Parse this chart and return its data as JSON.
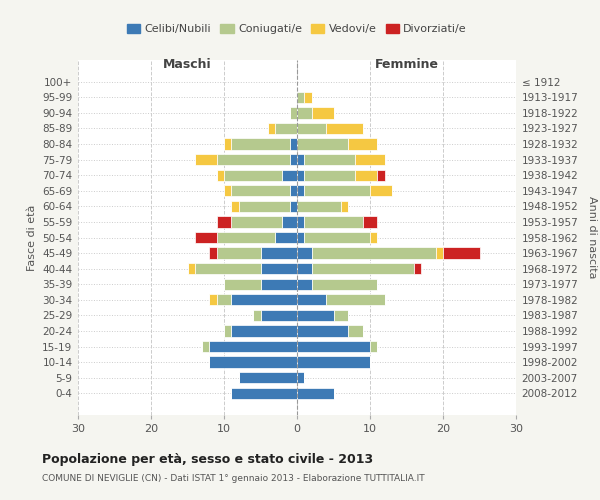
{
  "age_groups": [
    "0-4",
    "5-9",
    "10-14",
    "15-19",
    "20-24",
    "25-29",
    "30-34",
    "35-39",
    "40-44",
    "45-49",
    "50-54",
    "55-59",
    "60-64",
    "65-69",
    "70-74",
    "75-79",
    "80-84",
    "85-89",
    "90-94",
    "95-99",
    "100+"
  ],
  "birth_years": [
    "2008-2012",
    "2003-2007",
    "1998-2002",
    "1993-1997",
    "1988-1992",
    "1983-1987",
    "1978-1982",
    "1973-1977",
    "1968-1972",
    "1963-1967",
    "1958-1962",
    "1953-1957",
    "1948-1952",
    "1943-1947",
    "1938-1942",
    "1933-1937",
    "1928-1932",
    "1923-1927",
    "1918-1922",
    "1913-1917",
    "≤ 1912"
  ],
  "males": {
    "celibi": [
      9,
      8,
      12,
      12,
      9,
      5,
      9,
      5,
      5,
      5,
      3,
      2,
      1,
      1,
      2,
      1,
      1,
      0,
      0,
      0,
      0
    ],
    "coniugati": [
      0,
      0,
      0,
      1,
      1,
      1,
      2,
      5,
      9,
      6,
      8,
      7,
      7,
      8,
      8,
      10,
      8,
      3,
      1,
      0,
      0
    ],
    "vedovi": [
      0,
      0,
      0,
      0,
      0,
      0,
      1,
      0,
      1,
      0,
      0,
      0,
      1,
      1,
      1,
      3,
      1,
      1,
      0,
      0,
      0
    ],
    "divorziati": [
      0,
      0,
      0,
      0,
      0,
      0,
      0,
      0,
      0,
      1,
      3,
      2,
      0,
      0,
      0,
      0,
      0,
      0,
      0,
      0,
      0
    ]
  },
  "females": {
    "nubili": [
      5,
      1,
      10,
      10,
      7,
      5,
      4,
      2,
      2,
      2,
      1,
      1,
      0,
      1,
      1,
      1,
      0,
      0,
      0,
      0,
      0
    ],
    "coniugate": [
      0,
      0,
      0,
      1,
      2,
      2,
      8,
      9,
      14,
      17,
      9,
      8,
      6,
      9,
      7,
      7,
      7,
      4,
      2,
      1,
      0
    ],
    "vedove": [
      0,
      0,
      0,
      0,
      0,
      0,
      0,
      0,
      0,
      1,
      1,
      0,
      1,
      3,
      3,
      4,
      4,
      5,
      3,
      1,
      0
    ],
    "divorziate": [
      0,
      0,
      0,
      0,
      0,
      0,
      0,
      0,
      1,
      5,
      0,
      2,
      0,
      0,
      1,
      0,
      0,
      0,
      0,
      0,
      0
    ]
  },
  "colors": {
    "celibi": "#3d7ab5",
    "coniugati": "#b5c98e",
    "vedovi": "#f5c842",
    "divorziati": "#cc2222"
  },
  "xlim": 30,
  "title": "Popolazione per età, sesso e stato civile - 2013",
  "subtitle": "COMUNE DI NEVIGLIE (CN) - Dati ISTAT 1° gennaio 2013 - Elaborazione TUTTITALIA.IT",
  "ylabel_left": "Fasce di età",
  "ylabel_right": "Anni di nascita",
  "xlabel_left": "Maschi",
  "xlabel_right": "Femmine",
  "background_color": "#f5f5f0",
  "bar_bg": "#ffffff"
}
